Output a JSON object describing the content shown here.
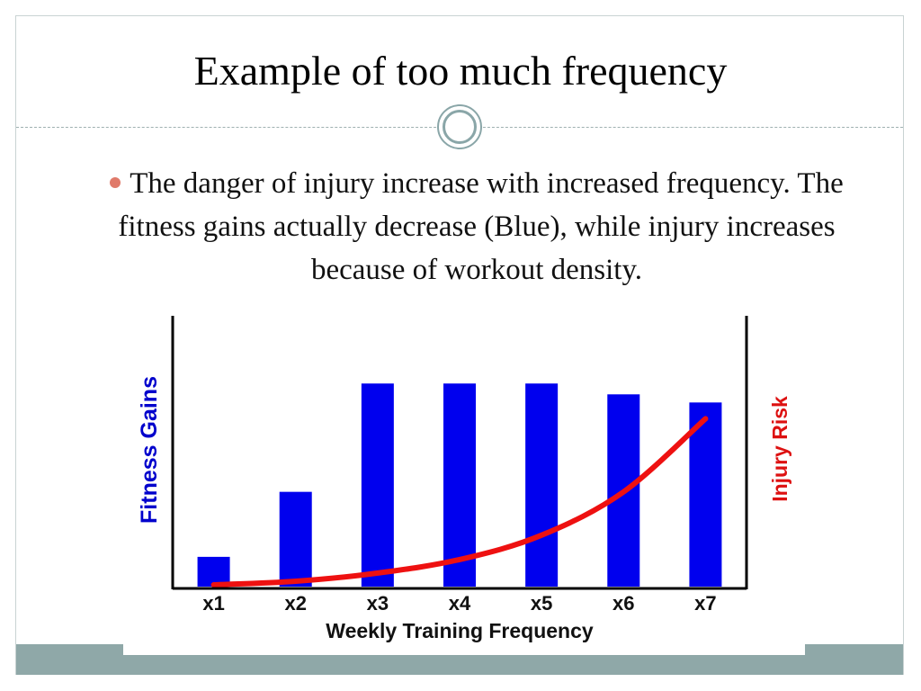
{
  "slide": {
    "title": "Example of too much frequency",
    "bullet": "The danger of injury increase with increased frequency. The fitness gains actually decrease (Blue), while injury increases because of workout density."
  },
  "colors": {
    "bar": "#0000ee",
    "curve": "#ee1111",
    "left_axis_label": "#0000cc",
    "right_axis_label": "#dd1111",
    "footer": "#8fa8a8"
  },
  "chart_data": {
    "type": "bar",
    "categories": [
      "x1",
      "x2",
      "x3",
      "x4",
      "x5",
      "x6",
      "x7"
    ],
    "series": [
      {
        "values": [
          11,
          35,
          75,
          75,
          75,
          71,
          68
        ]
      }
    ],
    "overlay_line": {
      "values": [
        0,
        2,
        5,
        10,
        19,
        35,
        62
      ]
    },
    "xlabel": "Weekly Training Frequency",
    "ylabel": "Fitness Gains",
    "ylabel_right": "Injury Risk",
    "ylim": [
      0,
      100
    ],
    "grid": false
  }
}
